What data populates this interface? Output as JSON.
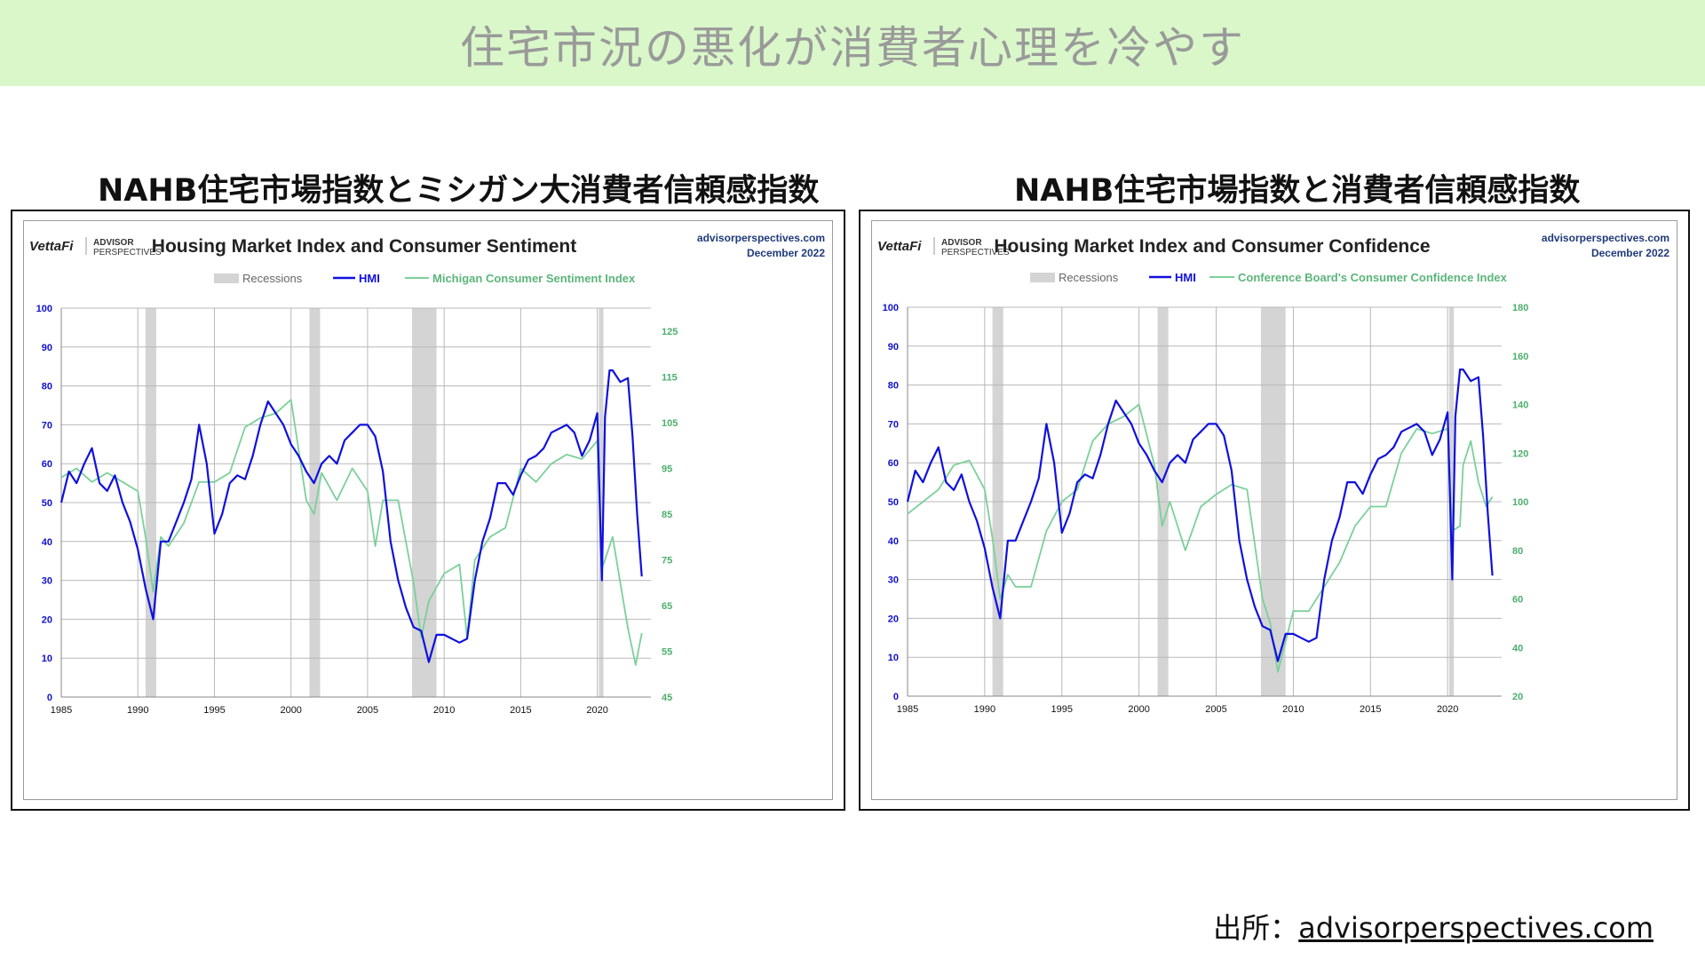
{
  "page": {
    "title": "住宅市況の悪化が消費者心理を冷やす",
    "source_prefix": "出所：",
    "source_link": "advisorperspectives.com"
  },
  "colors": {
    "hmi": "#1010dd",
    "sentiment": "#7bd09a",
    "recession": "#d4d4d4",
    "banner": "#d9f7c9"
  },
  "panels": [
    {
      "heading": "NAHB住宅市場指数とミシガン大消費者信頼感指数",
      "logo": "VettaFi",
      "brand_top": "ADVISOR",
      "brand_bottom": "PERSPECTIVES",
      "site": "advisorperspectives.com",
      "date": "December 2022"
    },
    {
      "heading": "NAHB住宅市場指数と消費者信頼感指数",
      "logo": "VettaFi",
      "brand_top": "ADVISOR",
      "brand_bottom": "PERSPECTIVES",
      "site": "advisorperspectives.com",
      "date": "December 2022"
    }
  ],
  "chart_data": [
    {
      "type": "line",
      "title": "Housing Market Index and Consumer Sentiment",
      "legend": [
        "Recessions",
        "HMI",
        "Michigan Consumer Sentiment Index"
      ],
      "legend_position": "top",
      "grid": true,
      "x_ticks": [
        "1985",
        "1990",
        "1995",
        "2000",
        "2005",
        "2010",
        "2015",
        "2020"
      ],
      "xlim": [
        1985,
        2023.5
      ],
      "ylim_left": [
        0,
        100
      ],
      "yticks_left": [
        0,
        10,
        20,
        30,
        40,
        50,
        60,
        70,
        80,
        90,
        100
      ],
      "ylim_right": [
        45,
        130
      ],
      "yticks_right": [
        45,
        55,
        65,
        75,
        85,
        95,
        105,
        115,
        125
      ],
      "recessions": [
        [
          1990.5,
          1991.2
        ],
        [
          2001.2,
          2001.9
        ],
        [
          2007.9,
          2009.5
        ],
        [
          2020.1,
          2020.4
        ]
      ],
      "series": [
        {
          "name": "HMI",
          "axis": "left",
          "x": [
            1985.0,
            1985.5,
            1986.0,
            1986.5,
            1987.0,
            1987.5,
            1988.0,
            1988.5,
            1989.0,
            1989.5,
            1990.0,
            1990.5,
            1991.0,
            1991.5,
            1992.0,
            1992.5,
            1993.0,
            1993.5,
            1994.0,
            1994.5,
            1995.0,
            1995.5,
            1996.0,
            1996.5,
            1997.0,
            1997.5,
            1998.0,
            1998.5,
            1999.0,
            1999.5,
            2000.0,
            2000.5,
            2001.0,
            2001.5,
            2002.0,
            2002.5,
            2003.0,
            2003.5,
            2004.0,
            2004.5,
            2005.0,
            2005.5,
            2006.0,
            2006.5,
            2007.0,
            2007.5,
            2008.0,
            2008.5,
            2009.0,
            2009.5,
            2010.0,
            2010.5,
            2011.0,
            2011.5,
            2012.0,
            2012.5,
            2013.0,
            2013.5,
            2014.0,
            2014.5,
            2015.0,
            2015.5,
            2016.0,
            2016.5,
            2017.0,
            2017.5,
            2018.0,
            2018.5,
            2019.0,
            2019.5,
            2020.0,
            2020.3,
            2020.5,
            2020.8,
            2021.0,
            2021.5,
            2022.0,
            2022.3,
            2022.6,
            2022.9
          ],
          "values": [
            50,
            58,
            55,
            60,
            64,
            55,
            53,
            57,
            50,
            45,
            38,
            28,
            20,
            40,
            40,
            45,
            50,
            56,
            70,
            60,
            42,
            47,
            55,
            57,
            56,
            62,
            70,
            76,
            73,
            70,
            65,
            62,
            58,
            55,
            60,
            62,
            60,
            66,
            68,
            70,
            70,
            67,
            58,
            40,
            30,
            23,
            18,
            17,
            9,
            16,
            16,
            15,
            14,
            15,
            30,
            40,
            46,
            55,
            55,
            52,
            57,
            61,
            62,
            64,
            68,
            69,
            70,
            68,
            62,
            66,
            73,
            30,
            72,
            84,
            84,
            81,
            82,
            67,
            47,
            31
          ]
        },
        {
          "name": "Michigan Consumer Sentiment Index",
          "axis": "right",
          "x": [
            1985.0,
            1986.0,
            1987.0,
            1988.0,
            1989.0,
            1990.0,
            1990.5,
            1991.0,
            1991.5,
            1992.0,
            1993.0,
            1994.0,
            1995.0,
            1996.0,
            1997.0,
            1998.0,
            1999.0,
            2000.0,
            2001.0,
            2001.5,
            2002.0,
            2003.0,
            2004.0,
            2005.0,
            2005.5,
            2006.0,
            2007.0,
            2008.0,
            2008.5,
            2009.0,
            2010.0,
            2011.0,
            2011.5,
            2012.0,
            2013.0,
            2014.0,
            2015.0,
            2016.0,
            2017.0,
            2018.0,
            2019.0,
            2020.0,
            2020.3,
            2020.8,
            2021.0,
            2021.5,
            2022.0,
            2022.5,
            2022.9
          ],
          "values": [
            93,
            95,
            92,
            94,
            92,
            90,
            80,
            68,
            80,
            78,
            83,
            92,
            92,
            94,
            104,
            106,
            107,
            110,
            88,
            85,
            94,
            88,
            95,
            90,
            78,
            88,
            88,
            70,
            58,
            66,
            72,
            74,
            58,
            75,
            80,
            82,
            95,
            92,
            96,
            98,
            97,
            101,
            73,
            78,
            80,
            70,
            60,
            52,
            59
          ]
        }
      ]
    },
    {
      "type": "line",
      "title": "Housing Market Index and Consumer Confidence",
      "legend": [
        "Recessions",
        "HMI",
        "Conference Board's Consumer Confidence Index"
      ],
      "legend_position": "top",
      "grid": true,
      "x_ticks": [
        "1985",
        "1990",
        "1995",
        "2000",
        "2005",
        "2010",
        "2015",
        "2020"
      ],
      "xlim": [
        1985,
        2023.5
      ],
      "ylim_left": [
        0,
        100
      ],
      "yticks_left": [
        0,
        10,
        20,
        30,
        40,
        50,
        60,
        70,
        80,
        90,
        100
      ],
      "ylim_right": [
        20,
        180
      ],
      "yticks_right": [
        20,
        40,
        60,
        80,
        100,
        120,
        140,
        160,
        180
      ],
      "recessions": [
        [
          1990.5,
          1991.2
        ],
        [
          2001.2,
          2001.9
        ],
        [
          2007.9,
          2009.5
        ],
        [
          2020.1,
          2020.4
        ]
      ],
      "series": [
        {
          "name": "HMI",
          "axis": "left",
          "x": [
            1985.0,
            1985.5,
            1986.0,
            1986.5,
            1987.0,
            1987.5,
            1988.0,
            1988.5,
            1989.0,
            1989.5,
            1990.0,
            1990.5,
            1991.0,
            1991.5,
            1992.0,
            1992.5,
            1993.0,
            1993.5,
            1994.0,
            1994.5,
            1995.0,
            1995.5,
            1996.0,
            1996.5,
            1997.0,
            1997.5,
            1998.0,
            1998.5,
            1999.0,
            1999.5,
            2000.0,
            2000.5,
            2001.0,
            2001.5,
            2002.0,
            2002.5,
            2003.0,
            2003.5,
            2004.0,
            2004.5,
            2005.0,
            2005.5,
            2006.0,
            2006.5,
            2007.0,
            2007.5,
            2008.0,
            2008.5,
            2009.0,
            2009.5,
            2010.0,
            2010.5,
            2011.0,
            2011.5,
            2012.0,
            2012.5,
            2013.0,
            2013.5,
            2014.0,
            2014.5,
            2015.0,
            2015.5,
            2016.0,
            2016.5,
            2017.0,
            2017.5,
            2018.0,
            2018.5,
            2019.0,
            2019.5,
            2020.0,
            2020.3,
            2020.5,
            2020.8,
            2021.0,
            2021.5,
            2022.0,
            2022.3,
            2022.6,
            2022.9
          ],
          "values": [
            50,
            58,
            55,
            60,
            64,
            55,
            53,
            57,
            50,
            45,
            38,
            28,
            20,
            40,
            40,
            45,
            50,
            56,
            70,
            60,
            42,
            47,
            55,
            57,
            56,
            62,
            70,
            76,
            73,
            70,
            65,
            62,
            58,
            55,
            60,
            62,
            60,
            66,
            68,
            70,
            70,
            67,
            58,
            40,
            30,
            23,
            18,
            17,
            9,
            16,
            16,
            15,
            14,
            15,
            30,
            40,
            46,
            55,
            55,
            52,
            57,
            61,
            62,
            64,
            68,
            69,
            70,
            68,
            62,
            66,
            73,
            30,
            72,
            84,
            84,
            81,
            82,
            67,
            47,
            31
          ]
        },
        {
          "name": "Conference Board's Consumer Confidence Index",
          "axis": "right",
          "x": [
            1985.0,
            1986.0,
            1987.0,
            1988.0,
            1989.0,
            1990.0,
            1990.5,
            1991.0,
            1991.5,
            1992.0,
            1993.0,
            1994.0,
            1995.0,
            1996.0,
            1997.0,
            1998.0,
            1999.0,
            2000.0,
            2001.0,
            2001.5,
            2002.0,
            2003.0,
            2004.0,
            2005.0,
            2006.0,
            2007.0,
            2008.0,
            2008.5,
            2009.0,
            2010.0,
            2011.0,
            2012.0,
            2013.0,
            2014.0,
            2015.0,
            2016.0,
            2017.0,
            2018.0,
            2019.0,
            2020.0,
            2020.3,
            2020.8,
            2021.0,
            2021.5,
            2022.0,
            2022.5,
            2022.9
          ],
          "values": [
            95,
            100,
            105,
            115,
            117,
            105,
            85,
            60,
            70,
            65,
            65,
            88,
            100,
            105,
            125,
            132,
            135,
            140,
            115,
            90,
            100,
            80,
            98,
            103,
            107,
            105,
            60,
            50,
            30,
            55,
            55,
            65,
            75,
            90,
            98,
            98,
            120,
            130,
            128,
            130,
            88,
            90,
            115,
            125,
            108,
            98,
            102
          ]
        }
      ]
    }
  ]
}
